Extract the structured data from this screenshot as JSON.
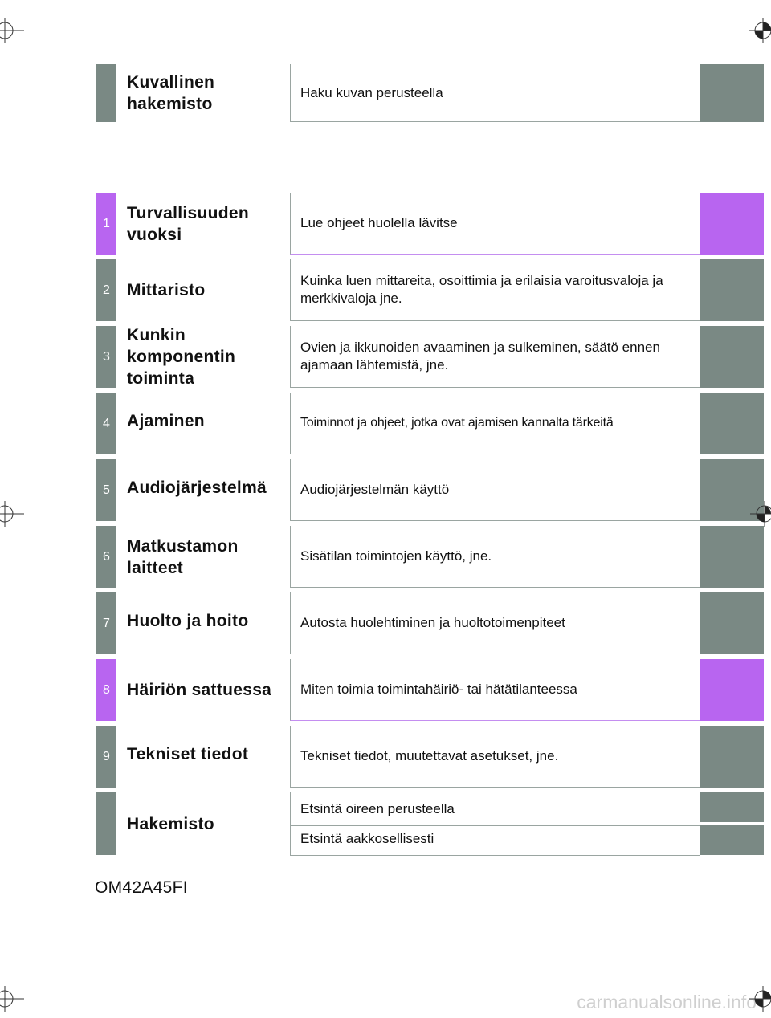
{
  "image_index": {
    "title": "Kuvallinen hakemisto",
    "description": "Haku kuvan perusteella"
  },
  "sections": [
    {
      "number": "1",
      "title": "Turvallisuuden vuoksi",
      "description": "Lue ohjeet huolella lävitse",
      "color": "#b865f0"
    },
    {
      "number": "2",
      "title": "Mittaristo",
      "description": "Kuinka luen mittareita, osoittimia ja erilaisia varoitusvaloja ja merkkivaloja jne.",
      "color": "#7a8984"
    },
    {
      "number": "3",
      "title": "Kunkin komponentin toiminta",
      "description": "Ovien ja ikkunoiden avaaminen ja sulkeminen, säätö ennen ajamaan lähtemistä, jne.",
      "color": "#7a8984"
    },
    {
      "number": "4",
      "title": "Ajaminen",
      "description": "Toiminnot ja ohjeet, jotka ovat ajamisen kannalta tärkeitä",
      "color": "#7a8984"
    },
    {
      "number": "5",
      "title": "Audiojärjestelmä",
      "description": "Audiojärjestelmän käyttö",
      "color": "#7a8984"
    },
    {
      "number": "6",
      "title": "Matkustamon laitteet",
      "description": "Sisätilan toimintojen käyttö, jne.",
      "color": "#7a8984"
    },
    {
      "number": "7",
      "title": "Huolto ja hoito",
      "description": "Autosta huolehtiminen ja huoltotoimenpiteet",
      "color": "#7a8984"
    },
    {
      "number": "8",
      "title": "Häiriön sattuessa",
      "description": "Miten toimia toimintahäiriö- tai hätätilanteessa",
      "color": "#b865f0"
    },
    {
      "number": "9",
      "title": "Tekniset tiedot",
      "description": "Tekniset tiedot, muutettavat asetukset, jne.",
      "color": "#7a8984"
    }
  ],
  "index": {
    "title": "Hakemisto",
    "items": [
      "Etsintä oireen perusteella",
      "Etsintä aakkosellisesti"
    ]
  },
  "manual_code": "OM42A45FI",
  "watermark": "carmanualsonline.info",
  "colors": {
    "gray_tab": "#7a8984",
    "purple_tab": "#b865f0"
  }
}
